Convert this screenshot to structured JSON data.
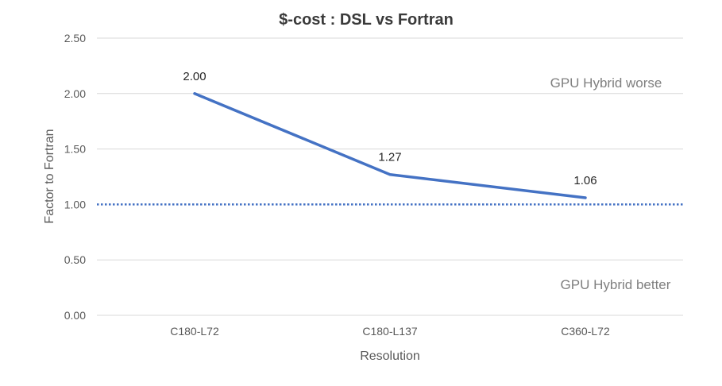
{
  "chart_data": {
    "type": "line",
    "title": "$-cost : DSL vs Fortran",
    "xlabel": "Resolution",
    "ylabel": "Factor to Fortran",
    "categories": [
      "C180-L72",
      "C180-L137",
      "C360-L72"
    ],
    "series": [
      {
        "values": [
          2.0,
          1.27,
          1.06
        ],
        "color": "#4472c4"
      }
    ],
    "data_labels": [
      "2.00",
      "1.27",
      "1.06"
    ],
    "y_ticks": [
      "0.00",
      "0.50",
      "1.00",
      "1.50",
      "2.00",
      "2.50"
    ],
    "ylim": [
      0,
      2.5
    ],
    "grid": true,
    "reference_line": {
      "value": 1.0,
      "style": "dotted",
      "color": "#4472c4"
    },
    "annotations": {
      "worse": "GPU Hybrid worse",
      "better": "GPU Hybrid better"
    }
  }
}
